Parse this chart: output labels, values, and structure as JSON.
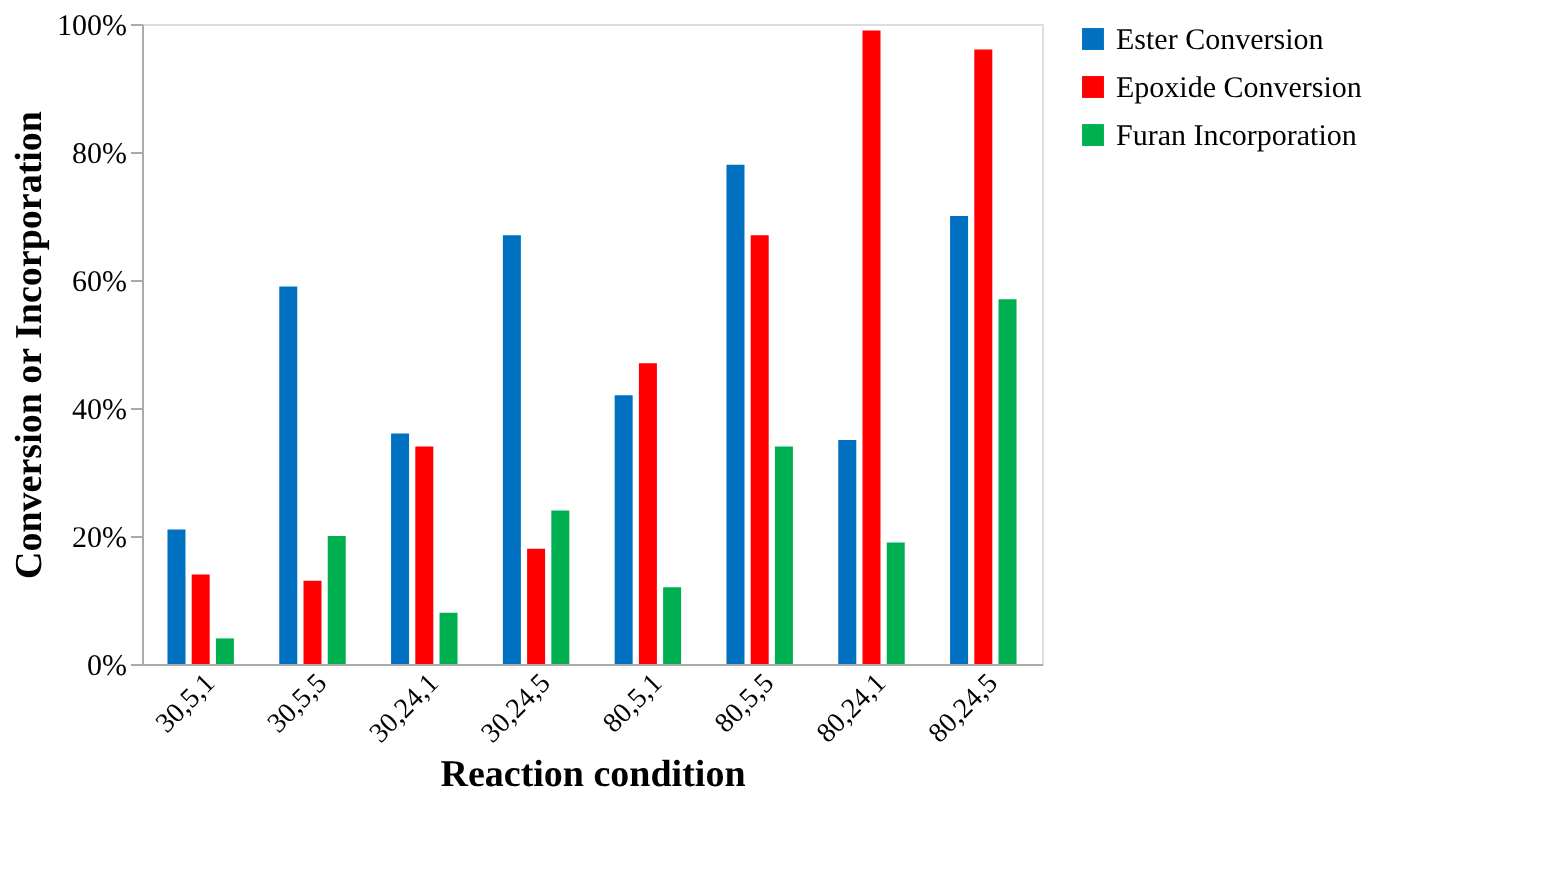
{
  "chart_data": {
    "type": "bar",
    "xlabel": "Reaction condition",
    "ylabel": "Conversion or Incorporation",
    "categories": [
      "30,5,1",
      "30,5,5",
      "30,24,1",
      "30,24,5",
      "80,5,1",
      "80,5,5",
      "80,24,1",
      "80,24,5"
    ],
    "series": [
      {
        "name": "Ester Conversion",
        "color": "#0070c0",
        "values": [
          21,
          59,
          36,
          67,
          42,
          78,
          35,
          70
        ]
      },
      {
        "name": "Epoxide Conversion",
        "color": "#ff0000",
        "values": [
          14,
          13,
          34,
          18,
          47,
          67,
          99,
          96
        ]
      },
      {
        "name": "Furan Incorporation",
        "color": "#00b050",
        "values": [
          4,
          20,
          8,
          24,
          12,
          34,
          19,
          57
        ]
      }
    ],
    "ylim": [
      0,
      100
    ],
    "yticks": [
      {
        "value": 0,
        "label": "0%"
      },
      {
        "value": 20,
        "label": "20%"
      },
      {
        "value": 40,
        "label": "40%"
      },
      {
        "value": 60,
        "label": "60%"
      },
      {
        "value": 80,
        "label": "80%"
      },
      {
        "value": 100,
        "label": "100%"
      }
    ],
    "grid": false,
    "legend": "right"
  }
}
